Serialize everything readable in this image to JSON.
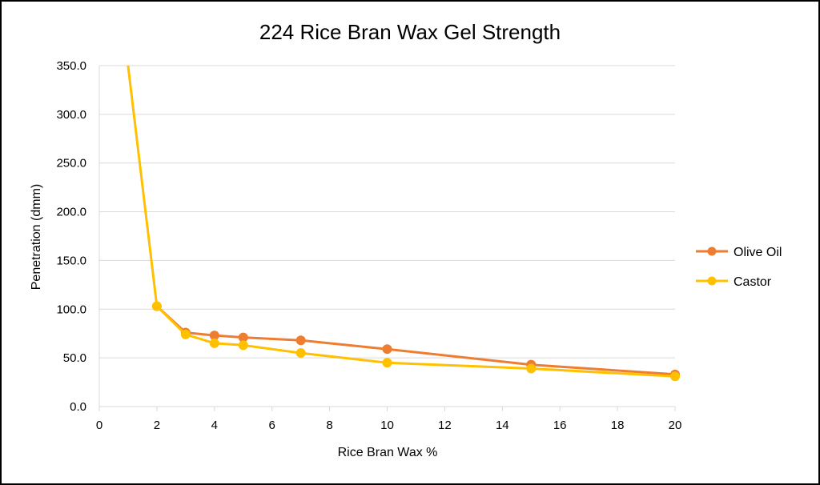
{
  "chart_data": {
    "type": "line",
    "title": "224 Rice Bran Wax Gel Strength",
    "xlabel": "Rice Bran Wax %",
    "ylabel": "Penetration (dmm)",
    "xlim": [
      0,
      20
    ],
    "ylim": [
      0,
      350
    ],
    "x_ticks": [
      "0",
      "2",
      "4",
      "6",
      "8",
      "10",
      "12",
      "14",
      "16",
      "18",
      "20"
    ],
    "y_ticks": [
      "0.0",
      "50.0",
      "100.0",
      "150.0",
      "200.0",
      "250.0",
      "300.0",
      "350.0"
    ],
    "grid": true,
    "legend_position": "right",
    "series": [
      {
        "name": "Olive Oil",
        "color": "#ED7D31",
        "points": [
          [
            2,
            103
          ],
          [
            3,
            76
          ],
          [
            4,
            73
          ],
          [
            5,
            71
          ],
          [
            7,
            68
          ],
          [
            10,
            59
          ],
          [
            15,
            43
          ],
          [
            20,
            33
          ]
        ],
        "markers": [
          [
            2,
            103
          ],
          [
            3,
            76
          ],
          [
            4,
            73
          ],
          [
            5,
            71
          ],
          [
            7,
            68
          ],
          [
            10,
            59
          ],
          [
            15,
            43
          ],
          [
            20,
            33
          ]
        ]
      },
      {
        "name": "Castor",
        "color": "#FFC000",
        "points": [
          [
            1,
            350
          ],
          [
            2,
            103
          ],
          [
            3,
            74
          ],
          [
            4,
            65
          ],
          [
            5,
            63
          ],
          [
            7,
            55
          ],
          [
            10,
            45
          ],
          [
            15,
            39
          ],
          [
            20,
            31
          ]
        ],
        "markers": [
          [
            2,
            103
          ],
          [
            3,
            74
          ],
          [
            4,
            65
          ],
          [
            5,
            63
          ],
          [
            7,
            55
          ],
          [
            10,
            45
          ],
          [
            15,
            39
          ],
          [
            20,
            31
          ]
        ]
      }
    ]
  }
}
